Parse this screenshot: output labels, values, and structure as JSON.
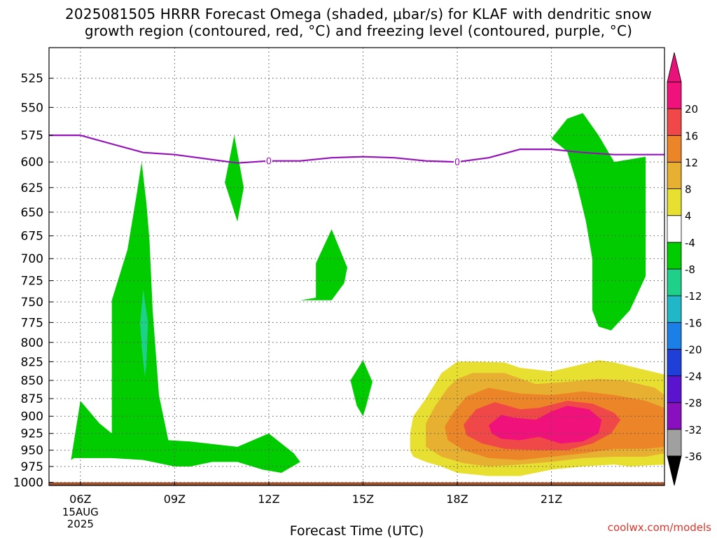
{
  "title": {
    "line1": "2025081505 HRRR Forecast Omega (shaded, μbar/s) for KLAF with dendritic snow",
    "line2": "growth region (contoured, red, °C) and freezing level (contoured, purple, °C)"
  },
  "watermark": "coolwx.com/models",
  "chart_data": {
    "type": "contour",
    "xlabel": "Forecast Time (UTC)",
    "ylabel": "",
    "x_unit": "hours (UTC, 15 Aug 2025)",
    "xlim": [
      5,
      24.6
    ],
    "x_ticks": [
      {
        "value": 6,
        "label": "06Z"
      },
      {
        "value": 9,
        "label": "09Z"
      },
      {
        "value": 12,
        "label": "12Z"
      },
      {
        "value": 15,
        "label": "15Z"
      },
      {
        "value": 18,
        "label": "18Z"
      },
      {
        "value": 21,
        "label": "21Z"
      }
    ],
    "x_date_label": [
      "15AUG",
      "2025"
    ],
    "y_scale": "log",
    "y_inverted": true,
    "ylim": [
      1005,
      500
    ],
    "y_ticks": [
      525,
      550,
      575,
      600,
      625,
      650,
      675,
      700,
      725,
      750,
      775,
      800,
      825,
      850,
      875,
      900,
      925,
      950,
      975,
      1000
    ],
    "grid": true,
    "colorbar": {
      "levels": [
        -36,
        -32,
        -28,
        -24,
        -20,
        -16,
        -12,
        -8,
        -4,
        4,
        8,
        12,
        16,
        20
      ],
      "label_levels": [
        20,
        16,
        12,
        8,
        4,
        -4,
        -8,
        -12,
        -16,
        -20,
        -24,
        -28,
        -32,
        -36
      ],
      "colors": [
        "#a0a0a0",
        "#8a0fbf",
        "#5a14cf",
        "#1f3fd9",
        "#1a7fe6",
        "#20b8c8",
        "#1fd08a",
        "#00cc00",
        "#ffffff",
        "#e8e030",
        "#e8b030",
        "#ec8428",
        "#f04848",
        "#f0127a"
      ],
      "low_triangle": "#000000",
      "high_triangle": "#e8127a"
    },
    "omega_regions": [
      {
        "level": "-8 to -4",
        "color": "#00cc00",
        "points": [
          [
            5.7,
            965
          ],
          [
            6.0,
            878
          ],
          [
            6.6,
            910
          ],
          [
            7.0,
            925
          ],
          [
            7.0,
            748
          ],
          [
            7.5,
            690
          ],
          [
            7.8,
            630
          ],
          [
            7.95,
            600
          ],
          [
            8.1,
            640
          ],
          [
            8.2,
            680
          ],
          [
            8.3,
            760
          ],
          [
            8.5,
            870
          ],
          [
            8.8,
            935
          ],
          [
            9.5,
            937
          ],
          [
            11.0,
            945
          ],
          [
            12.0,
            925
          ],
          [
            12.8,
            955
          ],
          [
            13.0,
            968
          ],
          [
            12.4,
            985
          ],
          [
            11.8,
            980
          ],
          [
            11.0,
            968
          ],
          [
            10.2,
            968
          ],
          [
            9.5,
            975
          ],
          [
            9.0,
            975
          ],
          [
            8.5,
            970
          ],
          [
            8.0,
            965
          ],
          [
            7.0,
            962
          ],
          [
            5.8,
            962
          ]
        ]
      },
      {
        "level": "-8 to -4",
        "color": "#00cc00",
        "points": [
          [
            10.6,
            620
          ],
          [
            10.9,
            575
          ],
          [
            11.2,
            625
          ],
          [
            11.0,
            660
          ]
        ]
      },
      {
        "level": "-8 to -4",
        "color": "#00cc00",
        "points": [
          [
            13.0,
            748
          ],
          [
            13.5,
            745
          ],
          [
            13.5,
            705
          ],
          [
            14.0,
            668
          ],
          [
            14.5,
            710
          ],
          [
            14.4,
            728
          ],
          [
            14.0,
            748
          ]
        ]
      },
      {
        "level": "-8 to -4",
        "color": "#00cc00",
        "points": [
          [
            14.6,
            850
          ],
          [
            15.0,
            823
          ],
          [
            15.3,
            852
          ],
          [
            15.1,
            885
          ],
          [
            15.0,
            900
          ],
          [
            14.8,
            885
          ]
        ]
      },
      {
        "level": "-8 to -4",
        "color": "#00cc00",
        "points": [
          [
            21.0,
            578
          ],
          [
            21.5,
            560
          ],
          [
            22.0,
            555
          ],
          [
            22.5,
            575
          ],
          [
            23.0,
            600
          ],
          [
            24.0,
            595
          ],
          [
            24.0,
            720
          ],
          [
            23.5,
            760
          ],
          [
            22.9,
            785
          ],
          [
            22.5,
            780
          ],
          [
            22.3,
            760
          ],
          [
            22.3,
            700
          ],
          [
            22.1,
            660
          ],
          [
            21.8,
            620
          ],
          [
            21.5,
            590
          ]
        ]
      },
      {
        "level": "-12 to -8",
        "color": "#1fd08a",
        "points": [
          [
            7.9,
            777
          ],
          [
            8.0,
            735
          ],
          [
            8.15,
            775
          ],
          [
            8.1,
            830
          ],
          [
            8.05,
            845
          ],
          [
            7.95,
            805
          ]
        ]
      },
      {
        "level": "4 to 8",
        "color": "#e8e030",
        "points": [
          [
            16.5,
            925
          ],
          [
            16.6,
            900
          ],
          [
            17.0,
            875
          ],
          [
            17.5,
            840
          ],
          [
            18.0,
            825
          ],
          [
            18.5,
            825
          ],
          [
            19.5,
            826
          ],
          [
            20.0,
            833
          ],
          [
            21.0,
            838
          ],
          [
            22.0,
            828
          ],
          [
            22.5,
            823
          ],
          [
            23.0,
            826
          ],
          [
            24.0,
            836
          ],
          [
            24.6,
            842
          ],
          [
            24.6,
            972
          ],
          [
            23.5,
            975
          ],
          [
            23.0,
            972
          ],
          [
            22.0,
            975
          ],
          [
            21.0,
            980
          ],
          [
            20.0,
            990
          ],
          [
            19.0,
            990
          ],
          [
            18.0,
            985
          ],
          [
            17.5,
            975
          ],
          [
            17.0,
            968
          ],
          [
            16.6,
            960
          ],
          [
            16.5,
            950
          ]
        ]
      },
      {
        "level": "8 to 12",
        "color": "#e8b030",
        "points": [
          [
            17.0,
            910
          ],
          [
            17.3,
            885
          ],
          [
            17.7,
            860
          ],
          [
            18.0,
            848
          ],
          [
            18.5,
            840
          ],
          [
            19.5,
            840
          ],
          [
            20.5,
            855
          ],
          [
            21.5,
            852
          ],
          [
            22.5,
            848
          ],
          [
            23.3,
            850
          ],
          [
            24.3,
            860
          ],
          [
            24.6,
            870
          ],
          [
            24.6,
            955
          ],
          [
            24.0,
            960
          ],
          [
            23.0,
            960
          ],
          [
            22.0,
            962
          ],
          [
            21.0,
            968
          ],
          [
            20.0,
            972
          ],
          [
            19.0,
            975
          ],
          [
            18.2,
            970
          ],
          [
            17.5,
            960
          ],
          [
            17.0,
            945
          ]
        ]
      },
      {
        "level": "12 to 16",
        "color": "#ec8428",
        "points": [
          [
            17.6,
            915
          ],
          [
            17.9,
            893
          ],
          [
            18.3,
            872
          ],
          [
            19.0,
            860
          ],
          [
            20.0,
            868
          ],
          [
            21.0,
            870
          ],
          [
            22.0,
            865
          ],
          [
            23.0,
            870
          ],
          [
            24.0,
            878
          ],
          [
            24.6,
            888
          ],
          [
            24.6,
            945
          ],
          [
            24.0,
            948
          ],
          [
            23.0,
            948
          ],
          [
            22.0,
            955
          ],
          [
            21.0,
            960
          ],
          [
            20.0,
            965
          ],
          [
            19.0,
            962
          ],
          [
            18.2,
            950
          ],
          [
            17.7,
            935
          ]
        ]
      },
      {
        "level": "16 to 20",
        "color": "#f04848",
        "points": [
          [
            18.2,
            912
          ],
          [
            18.6,
            890
          ],
          [
            19.2,
            880
          ],
          [
            20.0,
            890
          ],
          [
            20.6,
            888
          ],
          [
            21.5,
            878
          ],
          [
            22.3,
            882
          ],
          [
            23.0,
            895
          ],
          [
            23.2,
            905
          ],
          [
            22.9,
            925
          ],
          [
            22.3,
            940
          ],
          [
            21.5,
            950
          ],
          [
            20.5,
            950
          ],
          [
            19.5,
            948
          ],
          [
            18.8,
            940
          ],
          [
            18.3,
            928
          ]
        ]
      },
      {
        "level": "> 20",
        "color": "#f0127a",
        "points": [
          [
            19.0,
            913
          ],
          [
            19.4,
            898
          ],
          [
            19.8,
            902
          ],
          [
            20.5,
            905
          ],
          [
            21.0,
            893
          ],
          [
            21.5,
            885
          ],
          [
            22.2,
            890
          ],
          [
            22.6,
            905
          ],
          [
            22.5,
            925
          ],
          [
            22.0,
            937
          ],
          [
            21.3,
            940
          ],
          [
            20.6,
            930
          ],
          [
            20.0,
            935
          ],
          [
            19.4,
            933
          ],
          [
            19.1,
            925
          ]
        ]
      }
    ],
    "freezing_level": {
      "label": "0",
      "color": "#9512b8",
      "points": [
        [
          5.0,
          575
        ],
        [
          6.0,
          575
        ],
        [
          7.0,
          583
        ],
        [
          8.0,
          591
        ],
        [
          9.0,
          593
        ],
        [
          10.0,
          597
        ],
        [
          11.0,
          601
        ],
        [
          12.0,
          599
        ],
        [
          13.0,
          599
        ],
        [
          14.0,
          596
        ],
        [
          15.0,
          595
        ],
        [
          16.0,
          596
        ],
        [
          17.0,
          599
        ],
        [
          18.0,
          600
        ],
        [
          19.0,
          596
        ],
        [
          19.5,
          592
        ],
        [
          20.0,
          588
        ],
        [
          21.0,
          588
        ],
        [
          22.0,
          591
        ],
        [
          23.0,
          593
        ],
        [
          24.6,
          593
        ]
      ],
      "label_positions": [
        [
          12.0,
          599
        ],
        [
          18.0,
          600
        ]
      ]
    },
    "surface_band": {
      "from": 1000,
      "to": 1005,
      "color": "#a0522d"
    }
  }
}
